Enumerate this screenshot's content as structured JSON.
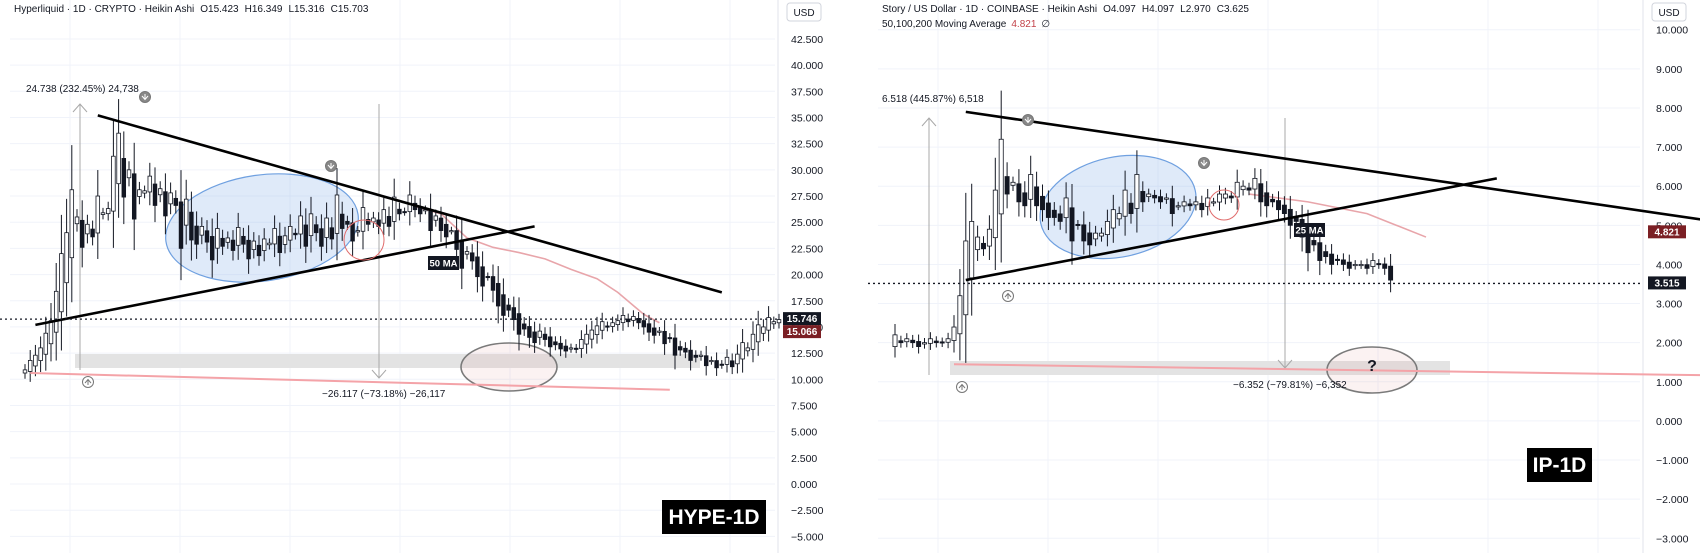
{
  "colors": {
    "bg": "#ffffff",
    "grid": "#f0f3fa",
    "candle": "#131722",
    "trendline": "#000000",
    "support_line": "#f4a3a8",
    "support_zone": "#e3e3e3",
    "ellipse_blue_fill": "rgba(128,170,230,0.25)",
    "ellipse_blue_stroke": "#6fa0e0",
    "ellipse_gray_fill": "rgba(220,150,150,0.12)",
    "ellipse_gray_stroke": "#7a7a7a",
    "ma_line": "#e8a5aa",
    "price_tag_current": "#131722",
    "price_tag_ma": "#7b1f24",
    "measure_line": "#a8a8a8"
  },
  "chart_data": [
    {
      "type": "candlestick",
      "style": "Heikin Ashi",
      "header": {
        "symbol": "Hyperliquid · 1D · CRYPTO · Heikin Ashi",
        "ohlc": {
          "o_label": "O",
          "o": "15.423",
          "h_label": "H",
          "h": "16.349",
          "l_label": "L",
          "l": "15.316",
          "c_label": "C",
          "c": "15.703"
        }
      },
      "currency": "USD",
      "y_ticks": [
        "42.500",
        "40.000",
        "37.500",
        "35.000",
        "32.500",
        "30.000",
        "27.500",
        "25.000",
        "22.500",
        "20.000",
        "17.500",
        "15.000",
        "12.500",
        "10.000",
        "7.500",
        "5.000",
        "2.500",
        "0.000",
        "−2.500",
        "−5.000"
      ],
      "y_tick_values": [
        42.5,
        40,
        37.5,
        35,
        32.5,
        30,
        27.5,
        25,
        22.5,
        20,
        17.5,
        15,
        12.5,
        10,
        7.5,
        5,
        2.5,
        0,
        -2.5,
        -5
      ],
      "ylim": [
        -6.3,
        44.5
      ],
      "x_days": 155,
      "current_price": {
        "label": "15.746",
        "value": 15.746
      },
      "ma_price": {
        "label": "15.066",
        "value": 15.066
      },
      "watermark": "HYPE-1D",
      "ma_label": "50 MA",
      "annotations": {
        "rise": "24.738 (232.45%) 24,738",
        "fall": "−26.117 (−73.18%) −26,117"
      },
      "closes": [
        10.9,
        11.8,
        12.3,
        13.0,
        14.4,
        15.6,
        18.4,
        22.0,
        24.0,
        28.1,
        25.5,
        22.6,
        24.8,
        23.6,
        27.5,
        25.9,
        26.3,
        31.3,
        33.5,
        27.4,
        30.0,
        25.3,
        28.1,
        28.0,
        29.4,
        26.6,
        28.2,
        25.6,
        27.8,
        26.6,
        22.5,
        27.2,
        23.3,
        22.9,
        24.6,
        23.1,
        21.4,
        24.4,
        22.7,
        23.5,
        22.3,
        24.5,
        22.9,
        21.5,
        23.2,
        21.8,
        23.4,
        23.0,
        24.4,
        22.1,
        23.7,
        24.6,
        23.8,
        25.6,
        22.7,
        25.8,
        24.0,
        22.7,
        25.4,
        23.4,
        27.6,
        24.4,
        24.8,
        23.2,
        24.2,
        26.4,
        24.8,
        25.4,
        24.6,
        26.2,
        24.6,
        27.4,
        25.8,
        26.0,
        27.6,
        26.2,
        25.8,
        26.2,
        24.2,
        25.6,
        24.2,
        23.6,
        24.2,
        22.4,
        20.6,
        22.2,
        21.3,
        19.8,
        18.9,
        19.8,
        18.5,
        17.0,
        16.1,
        16.6,
        15.7,
        14.3,
        14.8,
        14.0,
        13.5,
        14.6,
        13.8,
        13.1,
        13.3,
        12.9,
        12.7,
        13.0,
        12.9,
        13.8,
        14.3,
        14.7,
        15.1,
        15.5,
        15.0,
        15.4,
        15.6,
        16.1,
        15.5,
        16.0,
        15.4,
        15.0,
        14.5,
        14.2,
        14.6,
        13.4,
        13.9,
        12.3,
        12.8,
        12.6,
        11.8,
        12.1,
        12.3,
        11.3,
        11.8,
        11.1,
        11.4,
        12.1,
        11.2,
        12.4,
        13.5,
        13.0,
        14.3,
        15.2,
        15.0,
        15.9,
        15.5,
        15.7
      ],
      "trendlines": [
        {
          "name": "upper-trendline",
          "from": [
            14,
            35.2
          ],
          "to": [
            134,
            18.3
          ]
        },
        {
          "name": "lower-trendline",
          "from": [
            2,
            15.2
          ],
          "to": [
            98,
            24.6
          ]
        },
        {
          "name": "support-line",
          "from": [
            1,
            10.6
          ],
          "to": [
            124,
            9.0
          ]
        }
      ],
      "ma_series": [
        [
          75,
          26.5
        ],
        [
          80,
          25.8
        ],
        [
          85,
          23.5
        ],
        [
          90,
          22.6
        ],
        [
          95,
          22.1
        ],
        [
          100,
          21.5
        ],
        [
          105,
          20.5
        ],
        [
          110,
          19.6
        ],
        [
          114,
          18.3
        ],
        [
          119,
          16.2
        ],
        [
          122,
          15.4
        ]
      ]
    },
    {
      "type": "candlestick",
      "style": "Heikin Ashi",
      "header": {
        "symbol": "Story / US Dollar · 1D · COINBASE · Heikin Ashi",
        "ohlc": {
          "o_label": "O",
          "o": "4.097",
          "h_label": "H",
          "h": "4.097",
          "l_label": "L",
          "l": "2.970",
          "c_label": "C",
          "c": "3.625"
        },
        "ma_line": {
          "label": "50,100,200 Moving Average",
          "value": "4.821",
          "extra": "∅"
        }
      },
      "currency": "USD",
      "y_ticks": [
        "10.000",
        "9.000",
        "8.000",
        "7.000",
        "6.000",
        "5.000",
        "4.000",
        "3.000",
        "2.000",
        "1.000",
        "0.000",
        "−1.000",
        "−2.000",
        "−3.000"
      ],
      "y_tick_values": [
        10,
        9,
        8,
        7,
        6,
        5,
        4,
        3,
        2,
        1,
        0,
        -1,
        -2,
        -3
      ],
      "ylim": [
        -3.3,
        10.3
      ],
      "x_days": 155,
      "current_price": {
        "label": "3.515",
        "value": 3.515
      },
      "ma_price": {
        "label": "4.821",
        "value": 4.821
      },
      "watermark": "IP-1D",
      "ma_label": "25 MA",
      "question_mark": "?",
      "annotations": {
        "rise": "6.518 (445.87%) 6,518",
        "fall": "−6.352 (−79.81%) −6,352"
      },
      "closes": [
        2.2,
        2.0,
        2.1,
        2.0,
        1.9,
        2.0,
        2.1,
        2.0,
        2.0,
        2.1,
        2.4,
        3.2,
        4.6,
        5.1,
        4.7,
        4.4,
        4.9,
        5.9,
        7.2,
        5.8,
        6.1,
        5.6,
        5.5,
        6.3,
        5.5,
        5.4,
        5.2,
        5.2,
        5.1,
        5.7,
        4.6,
        5.0,
        4.6,
        4.5,
        4.8,
        4.8,
        5.1,
        5.4,
        5.3,
        5.9,
        5.3,
        6.3,
        5.6,
        5.8,
        5.7,
        5.6,
        5.7,
        5.3,
        5.5,
        5.6,
        5.5,
        5.6,
        5.4,
        5.7,
        5.6,
        5.8,
        5.8,
        5.7,
        6.1,
        6.0,
        5.9,
        6.2,
        5.6,
        5.5,
        5.6,
        5.4,
        5.3,
        5.0,
        5.1,
        4.7,
        4.3,
        4.5,
        4.1,
        4.2,
        4.0,
        4.1,
        4.0,
        3.9,
        4.0,
        4.0,
        3.9,
        4.1,
        4.0,
        3.9,
        3.6
      ],
      "trendlines": [
        {
          "name": "upper-trendline",
          "from": [
            12,
            7.9
          ],
          "to": [
            157,
            4.7
          ]
        },
        {
          "name": "lower-trendline",
          "from": [
            12,
            3.6
          ],
          "to": [
            102,
            6.2
          ]
        },
        {
          "name": "support-line",
          "from": [
            10,
            1.45
          ],
          "to": [
            145,
            1.15
          ]
        }
      ],
      "ma_series": [
        [
          60,
          5.8
        ],
        [
          70,
          5.6
        ],
        [
          80,
          5.3
        ],
        [
          85,
          5.0
        ],
        [
          90,
          4.7
        ]
      ]
    }
  ]
}
